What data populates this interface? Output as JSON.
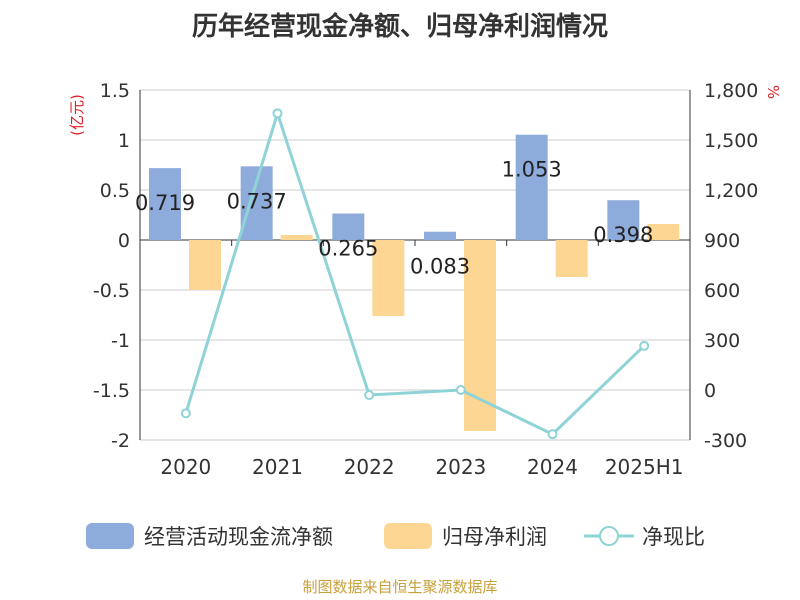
{
  "title": "历年经营现金净额、归母净利润情况",
  "source": "制图数据来自恒生聚源数据库",
  "chart_data": {
    "type": "bar+line",
    "categories": [
      "2020",
      "2021",
      "2022",
      "2023",
      "2024",
      "2025H1"
    ],
    "y_left": {
      "unit": "(亿元)",
      "ticks": [
        "1.5",
        "1",
        "0.5",
        "0",
        "-0.5",
        "-1",
        "-1.5",
        "-2"
      ],
      "range": [
        -2,
        1.5
      ]
    },
    "y_right": {
      "unit": "%",
      "ticks": [
        "1,800",
        "1,500",
        "1,200",
        "900",
        "600",
        "300",
        "0",
        "-300"
      ],
      "range": [
        -300,
        1800
      ]
    },
    "series": [
      {
        "name": "经营活动现金流净额",
        "type": "bar",
        "axis": "left",
        "color": "#8eacdb",
        "values": [
          0.719,
          0.737,
          0.265,
          0.083,
          1.053,
          0.398
        ],
        "labels": [
          "0.719",
          "0.737",
          "0.265",
          "0.083",
          "1.053",
          "0.398"
        ]
      },
      {
        "name": "归母净利润",
        "type": "bar",
        "axis": "left",
        "color": "#fdd694",
        "values": [
          -0.5,
          0.05,
          -0.76,
          -1.91,
          -0.37,
          0.16
        ]
      },
      {
        "name": "净现比",
        "type": "line",
        "axis": "right",
        "color": "#8fd3d6",
        "values": [
          -140,
          1660,
          -30,
          0,
          -265,
          265
        ]
      }
    ],
    "legend_position": "bottom",
    "grid": true
  }
}
